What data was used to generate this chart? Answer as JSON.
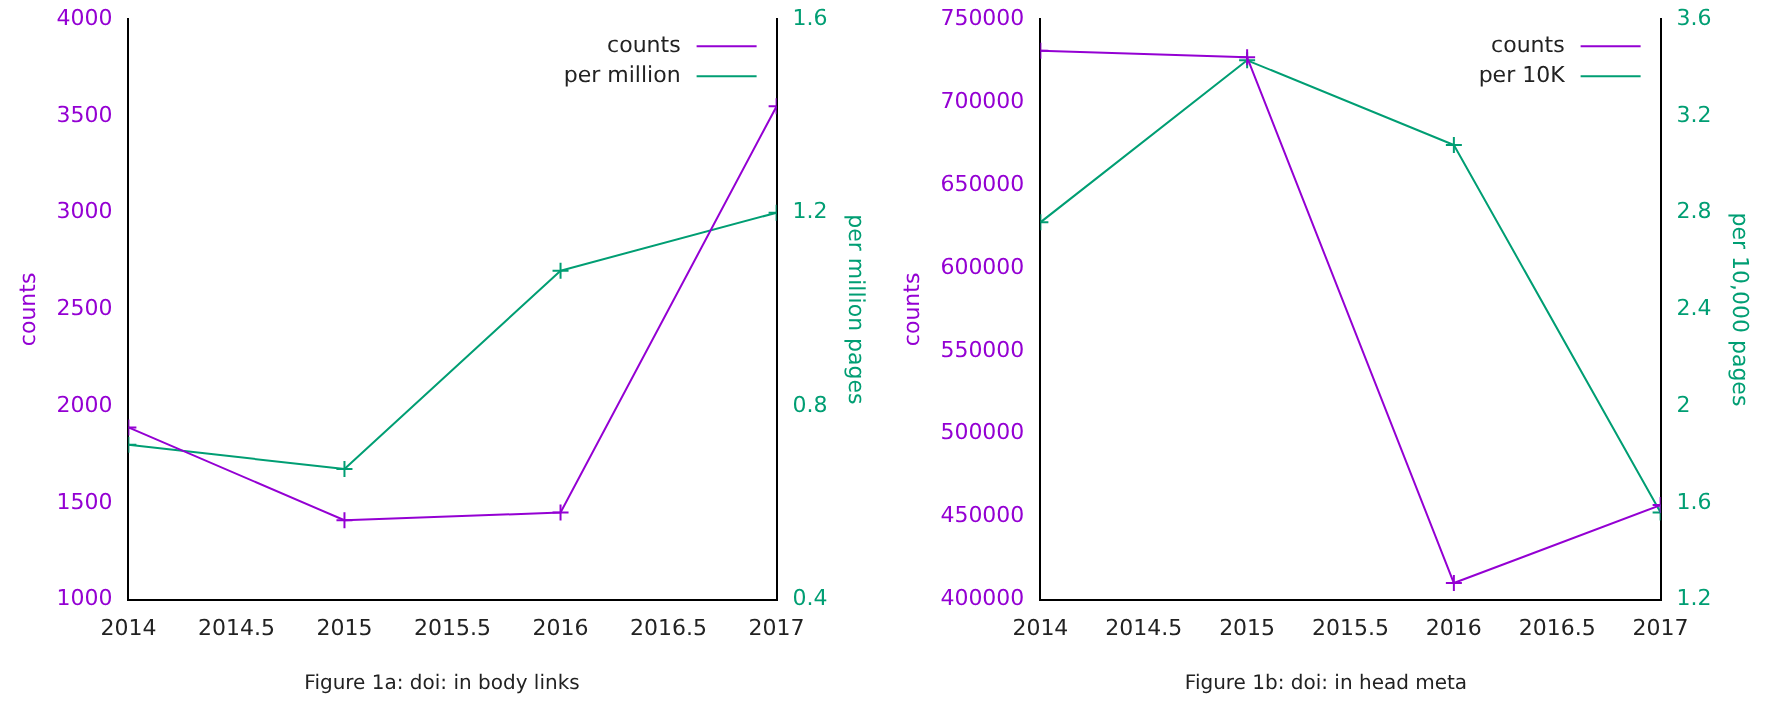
{
  "chart_data": [
    {
      "type": "line",
      "title": "Figure 1a: doi: in body links",
      "ylabel": "counts",
      "y2label": "per million pages",
      "x": [
        2014,
        2015,
        2016,
        2017
      ],
      "series": [
        {
          "name": "counts",
          "color": "#9400d3",
          "values": [
            1890,
            1410,
            1450,
            3550
          ],
          "marker": "cross"
        },
        {
          "name": "per million",
          "color": "#009e73",
          "values": [
            0.72,
            0.67,
            1.08,
            1.2
          ],
          "axis": "y2",
          "marker": "cross"
        }
      ],
      "xlim": [
        2014,
        2017
      ],
      "xticks": [
        2014,
        2014.5,
        2015,
        2015.5,
        2016,
        2016.5,
        2017
      ],
      "ylim": [
        1000,
        4000
      ],
      "yticks": [
        1000,
        1500,
        2000,
        2500,
        3000,
        3500,
        4000
      ],
      "y2lim": [
        0.4,
        1.6
      ],
      "y2ticks": [
        0.4,
        0.8,
        1.2,
        1.6
      ],
      "legend": "top right"
    },
    {
      "type": "line",
      "title": "Figure 1b: doi: in head meta",
      "ylabel": "counts",
      "y2label": "per 10,000 pages",
      "x": [
        2014,
        2015,
        2016,
        2017
      ],
      "series": [
        {
          "name": "counts",
          "color": "#9400d3",
          "values": [
            731000,
            727000,
            410000,
            457000
          ],
          "marker": "cross"
        },
        {
          "name": "per 10K",
          "color": "#009e73",
          "values": [
            2.76,
            3.43,
            3.08,
            1.56
          ],
          "axis": "y2",
          "marker": "cross"
        }
      ],
      "xlim": [
        2014,
        2017
      ],
      "xticks": [
        2014,
        2014.5,
        2015,
        2015.5,
        2016,
        2016.5,
        2017
      ],
      "ylim": [
        400000,
        750000
      ],
      "yticks": [
        400000,
        450000,
        500000,
        550000,
        600000,
        650000,
        700000,
        750000
      ],
      "y2lim": [
        1.2,
        3.6
      ],
      "y2ticks": [
        1.2,
        1.6,
        2,
        2.4,
        2.8,
        3.2,
        3.6
      ],
      "legend": "top right"
    }
  ]
}
